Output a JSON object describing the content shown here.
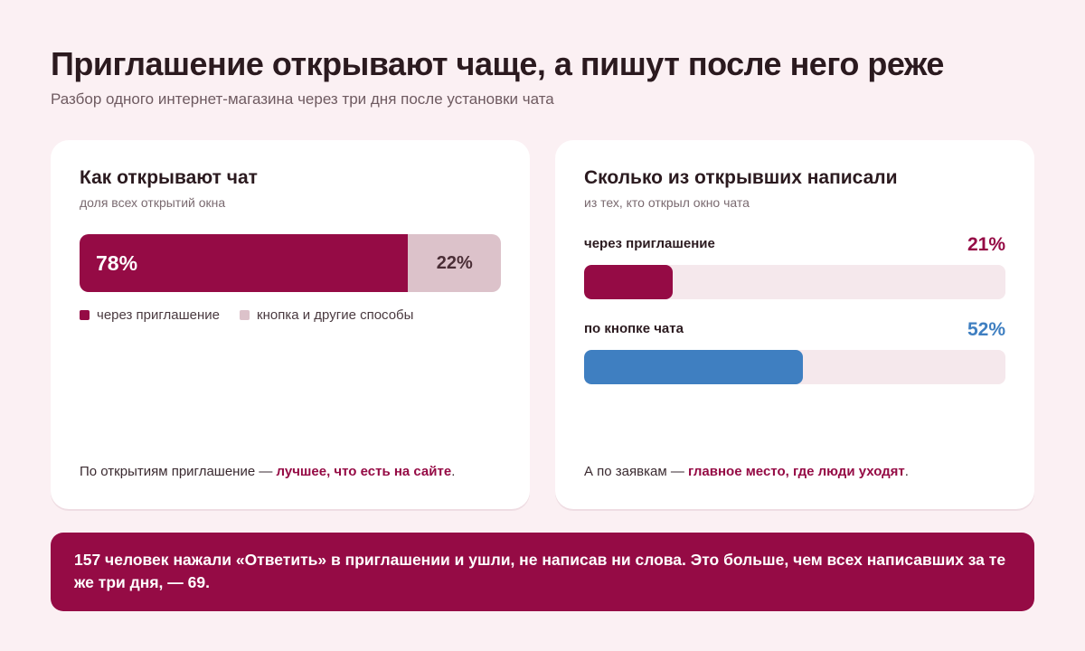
{
  "header": {
    "title": "Приглашение открывают чаще, а пишут после него реже",
    "subtitle": "Разбор одного интернет-магазина через три дня после установки чата"
  },
  "colors": {
    "primary": "#950b45",
    "secondary": "#dcc2ca",
    "blue": "#3f7fc1",
    "track": "#f5e8ec",
    "background": "#fbf0f3"
  },
  "left_card": {
    "title": "Как открывают чат",
    "subtitle": "доля всех открытий окна",
    "legend": [
      "через приглашение",
      "кнопка и другие способы"
    ],
    "note_prefix": "По открытиям приглашение —",
    "note_highlight": "лучшее, что есть на сайте",
    "note_suffix": "."
  },
  "right_card": {
    "title": "Сколько из открывших написали",
    "subtitle": "из тех, кто открыл окно чата",
    "note_prefix": "А по заявкам —",
    "note_highlight": "главное место, где люди уходят",
    "note_suffix": "."
  },
  "chart_data": [
    {
      "type": "bar",
      "stacked": true,
      "orientation": "horizontal",
      "title": "Как открывают чат",
      "categories": [
        "через приглашение",
        "кнопка и другие способы"
      ],
      "values": [
        78,
        22
      ],
      "value_labels": [
        "78%",
        "22%"
      ],
      "unit": "%"
    },
    {
      "type": "bar",
      "orientation": "horizontal",
      "title": "Сколько из открывших написали",
      "categories": [
        "через приглашение",
        "по кнопке чата"
      ],
      "values": [
        21,
        52
      ],
      "value_labels": [
        "21%",
        "52%"
      ],
      "xlim": [
        0,
        100
      ],
      "unit": "%"
    }
  ],
  "banner": {
    "bold_lead": "157 человек",
    "text": "нажали «Ответить» в приглашении и ушли, не написав ни слова. Это больше, чем всех написавших за те же три дня, — 69."
  }
}
